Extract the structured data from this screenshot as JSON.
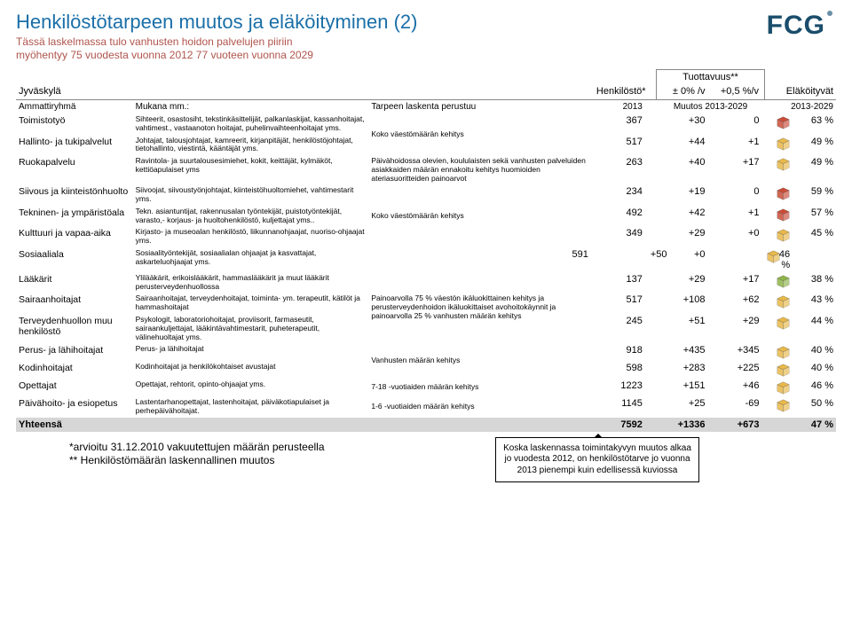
{
  "header": {
    "title": "Henkilöstötarpeen muutos ja eläköityminen (2)",
    "subtitle1": "Tässä laskelmassa tulo vanhusten hoidon palvelujen piiriin",
    "subtitle2": "myöhentyy 75 vuodesta vuonna 2012 77 vuoteen vuonna 2029",
    "logo": "FCG"
  },
  "columns": {
    "city": "Jyväskylä",
    "group": "Ammattiryhmä",
    "desc": "Mukana mm.:",
    "basis": "Tarpeen laskenta perustuu",
    "staff_head": "Henkilöstö*",
    "tuott": "Tuottavuus**",
    "col0": "± 0% /v",
    "col05": "+0,5 %/v",
    "retire": "Eläköityvät",
    "year": "2013",
    "change": "Muutos 2013-2029",
    "period": "2013-2029"
  },
  "rows": [
    {
      "group": "Toimistotyö",
      "desc": "Sihteerit, osastosiht, tekstinkäsittelijät, palkanlaskijat, kassanhoitajat, vahtimest., vastaanoton hoitajat, puhelinvaihteenhoitajat yms.",
      "basis": "Koko väestömäärän kehitys",
      "basis_span": 2,
      "staff": "367",
      "d0": "+30",
      "d5": "0",
      "pct": "63 %",
      "color": "#c94d38"
    },
    {
      "group": "Hallinto- ja tukipalvelut",
      "desc": "Johtajat, talousjohtajat, kamreerit, kirjanpitäjät, henkilöstöjohtajat, tietohallinto, viestintä, kääntäjät yms.",
      "staff": "517",
      "d0": "+44",
      "d5": "+1",
      "pct": "49 %",
      "color": "#e8b84a"
    },
    {
      "group": "Ruokapalvelu",
      "desc": "Ravintola- ja suurtalousesimiehet, kokit, keittäjät, kylmäköt, kettiöapulaiset yms",
      "basis": "Päivähoidossa olevien, koululaisten sekä vanhusten palveluiden asiakkaiden määrän ennakoitu kehitys huomioiden ateriasuoritteiden painoarvot",
      "staff": "263",
      "d0": "+40",
      "d5": "+17",
      "pct": "49 %",
      "color": "#e8b84a"
    },
    {
      "group": "Siivous ja kiinteistönhuolto",
      "desc": "Siivoojat, siivoustyönjohtajat, kiinteistöhuoltomiehet, vahtimestarit yms.",
      "basis": "Koko väestömäärän kehitys",
      "basis_span": 3,
      "staff": "234",
      "d0": "+19",
      "d5": "0",
      "pct": "59 %",
      "color": "#c94d38"
    },
    {
      "group": "Tekninen- ja ympäristöala",
      "desc": "Tekn. asiantuntijat, rakennusalan työntekijät, puistotyöntekijät, varasto,- korjaus- ja huoltohenkilöstö, kuljettajat yms..",
      "staff": "492",
      "d0": "+42",
      "d5": "+1",
      "pct": "57 %",
      "color": "#c94d38"
    },
    {
      "group": "Kulttuuri ja vapaa-aika",
      "desc": "Kirjasto- ja museoalan henkilöstö, liikunnanohjaajat, nuoriso-ohjaajat yms.",
      "staff": "349",
      "d0": "+29",
      "d5": "+0",
      "pct": "45 %",
      "color": "#e8b84a"
    },
    {
      "group": "Sosiaaliala",
      "desc": "Sosiaalityöntekijät, sosiaalialan ohjaajat ja kasvattajat, askarteluohjaajat yms.",
      "staff": "591",
      "d0": "+50",
      "d5": "+0",
      "pct": "46 %",
      "color": "#e8b84a"
    },
    {
      "group": "Lääkärit",
      "desc": "Ylilääkärit, erikoislääkärit, hammaslääkärit ja muut lääkärit perusterveydenhuollossa",
      "basis": "Painoarvolla 75 % väestön ikäluokittainen kehitys ja perusterveydenhoidon ikäluokittaiset avohoitokäynnit ja painoarvolla 25 % vanhusten määrän kehitys",
      "basis_span": 3,
      "staff": "137",
      "d0": "+29",
      "d5": "+17",
      "pct": "38 %",
      "color": "#8fb548"
    },
    {
      "group": "Sairaanhoitajat",
      "desc": "Sairaanhoitajat, terveydenhoitajat, toiminta- ym. terapeutit, kätilöt ja hammashoitajat",
      "staff": "517",
      "d0": "+108",
      "d5": "+62",
      "pct": "43 %",
      "color": "#e8b84a"
    },
    {
      "group": "Terveydenhuollon muu henkilöstö",
      "desc": "Psykologit, laboratoriohoitajat, proviisorit, farmaseutit, sairaankuljettajat, lääkintävahtimestarit, puheterapeutit, välinehuoltajat yms.",
      "staff": "245",
      "d0": "+51",
      "d5": "+29",
      "pct": "44 %",
      "color": "#e8b84a"
    },
    {
      "group": "Perus- ja lähihoitajat",
      "desc": "Perus- ja lähihoitajat",
      "basis": "Vanhusten määrän kehitys",
      "basis_span": 2,
      "staff": "918",
      "d0": "+435",
      "d5": "+345",
      "pct": "40 %",
      "color": "#e8b84a"
    },
    {
      "group": "Kodinhoitajat",
      "desc": "Kodinhoitajat ja henkilökohtaiset avustajat",
      "staff": "598",
      "d0": "+283",
      "d5": "+225",
      "pct": "40 %",
      "color": "#e8b84a"
    },
    {
      "group": "Opettajat",
      "desc": "Opettajat, rehtorit, opinto-ohjaajat yms.",
      "basis": "7-18 -vuotiaiden määrän kehitys",
      "staff": "1223",
      "d0": "+151",
      "d5": "+46",
      "pct": "46 %",
      "color": "#e8b84a"
    },
    {
      "group": "Päivähoito- ja esiopetus",
      "desc": "Lastentarhanopettajat, lastenhoitajat, päiväkotiapulaiset ja perhepäivähoitajat.",
      "basis": "1-6 -vuotiaiden määrän kehitys",
      "staff": "1145",
      "d0": "+25",
      "d5": "-69",
      "pct": "50 %",
      "color": "#e8b84a"
    }
  ],
  "total": {
    "label": "Yhteensä",
    "staff": "7592",
    "d0": "+1336",
    "d5": "+673",
    "pct": "47 %"
  },
  "notes": {
    "l1": "*arvioitu 31.12.2010 vakuutettujen määrän perusteella",
    "l2": "** Henkilöstömäärän laskennallinen muutos"
  },
  "callout": "Koska laskennassa toimintakyvyn muutos alkaa jo vuodesta 2012, on henkilöstötarve jo vuonna 2013 pienempi kuin edellisessä kuviossa"
}
